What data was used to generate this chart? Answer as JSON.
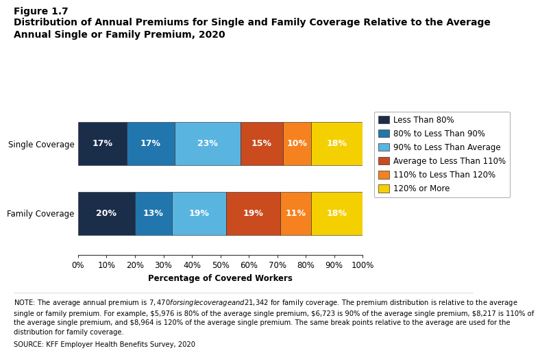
{
  "title_line1": "Figure 1.7",
  "title_line2": "Distribution of Annual Premiums for Single and Family Coverage Relative to the Average\nAnnual Single or Family Premium, 2020",
  "categories": [
    "Single Coverage",
    "Family Coverage"
  ],
  "segments": [
    {
      "label": "Less Than 80%",
      "color": "#1a2e4a",
      "values": [
        17,
        20
      ]
    },
    {
      "label": "80% to Less Than 90%",
      "color": "#2176ae",
      "values": [
        17,
        13
      ]
    },
    {
      "label": "90% to Less Than Average",
      "color": "#5ab4e0",
      "values": [
        23,
        19
      ]
    },
    {
      "label": "Average to Less Than 110%",
      "color": "#c94b1e",
      "values": [
        15,
        19
      ]
    },
    {
      "label": "110% to Less Than 120%",
      "color": "#f5821f",
      "values": [
        10,
        11
      ]
    },
    {
      "label": "120% or More",
      "color": "#f5d000",
      "values": [
        18,
        18
      ]
    }
  ],
  "xlabel": "Percentage of Covered Workers",
  "xlim": [
    0,
    100
  ],
  "xticks": [
    0,
    10,
    20,
    30,
    40,
    50,
    60,
    70,
    80,
    90,
    100
  ],
  "note_text": "NOTE: The average annual premium is $7,470 for single coverage and $21,342 for family coverage. The premium distribution is relative to the average\nsingle or family premium. For example, $5,976 is 80% of the average single premium, $6,723 is 90% of the average single premium, $8,217 is 110% of\nthe average single premium, and $8,964 is 120% of the average single premium. The same break points relative to the average are used for the\ndistribution for family coverage.",
  "source_text": "SOURCE: KFF Employer Health Benefits Survey, 2020",
  "bar_height": 0.62,
  "label_fontsize": 9,
  "legend_fontsize": 8.5,
  "axis_fontsize": 8.5,
  "note_fontsize": 7.2,
  "title1_fontsize": 10,
  "title2_fontsize": 10
}
